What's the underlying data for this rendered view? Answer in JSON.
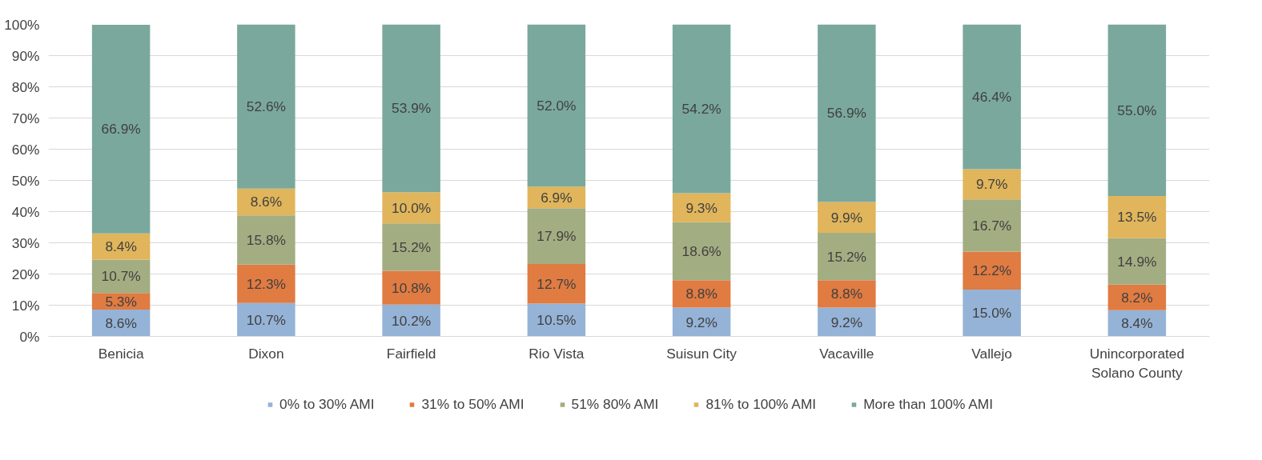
{
  "chart_data": {
    "type": "bar",
    "stacked": true,
    "categories": [
      "Benicia",
      "Dixon",
      "Fairfield",
      "Rio Vista",
      "Suisun City",
      "Vacaville",
      "Vallejo",
      "Unincorporated\nSolano County"
    ],
    "ylim": [
      0,
      100
    ],
    "yticks": [
      {
        "value": 0,
        "label": "0%"
      },
      {
        "value": 10,
        "label": "10%"
      },
      {
        "value": 20,
        "label": "20%"
      },
      {
        "value": 30,
        "label": "30%"
      },
      {
        "value": 40,
        "label": "40%"
      },
      {
        "value": 50,
        "label": "50%"
      },
      {
        "value": 60,
        "label": "60%"
      },
      {
        "value": 70,
        "label": "70%"
      },
      {
        "value": 80,
        "label": "80%"
      },
      {
        "value": 90,
        "label": "90%"
      },
      {
        "value": 100,
        "label": "100%"
      }
    ],
    "grid": "y",
    "legend": "bottom",
    "series": [
      {
        "name": "0% to 30% AMI",
        "color": "#95b3d7",
        "values": [
          8.6,
          10.7,
          10.2,
          10.5,
          9.2,
          9.2,
          15.0,
          8.4
        ],
        "value_labels": [
          "8.6%",
          "10.7%",
          "10.2%",
          "10.5%",
          "9.2%",
          "9.2%",
          "15.0%",
          "8.4%"
        ]
      },
      {
        "name": "31% to 50% AMI",
        "color": "#e07b42",
        "values": [
          5.3,
          12.3,
          10.8,
          12.7,
          8.8,
          8.8,
          12.2,
          8.2
        ],
        "value_labels": [
          "5.3%",
          "12.3%",
          "10.8%",
          "12.7%",
          "8.8%",
          "8.8%",
          "12.2%",
          "8.2%"
        ]
      },
      {
        "name": "51% 80% AMI",
        "color": "#a3ad82",
        "values": [
          10.7,
          15.8,
          15.2,
          17.9,
          18.6,
          15.2,
          16.7,
          14.9
        ],
        "value_labels": [
          "10.7%",
          "15.8%",
          "15.2%",
          "17.9%",
          "18.6%",
          "15.2%",
          "16.7%",
          "14.9%"
        ]
      },
      {
        "name": "81% to 100% AMI",
        "color": "#e0b55b",
        "values": [
          8.4,
          8.6,
          10.0,
          6.9,
          9.3,
          9.9,
          9.7,
          13.5
        ],
        "value_labels": [
          "8.4%",
          "8.6%",
          "10.0%",
          "6.9%",
          "9.3%",
          "9.9%",
          "9.7%",
          "13.5%"
        ]
      },
      {
        "name": "More than 100% AMI",
        "color": "#7aa89c",
        "values": [
          66.9,
          52.6,
          53.9,
          52.0,
          54.2,
          56.9,
          46.4,
          55.0
        ],
        "value_labels": [
          "66.9%",
          "52.6%",
          "53.9%",
          "52.0%",
          "54.2%",
          "56.9%",
          "46.4%",
          "55.0%"
        ]
      }
    ]
  }
}
